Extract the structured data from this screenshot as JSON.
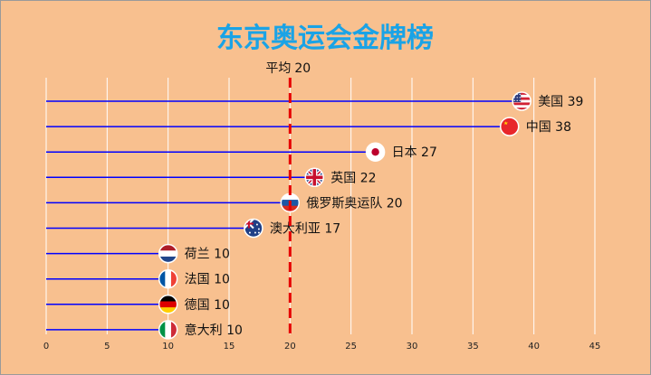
{
  "chart_data": {
    "type": "lollipop",
    "title": "东京奥运会金牌榜",
    "xlim": [
      0,
      45
    ],
    "xticks": [
      0,
      5,
      10,
      15,
      20,
      25,
      30,
      35,
      40,
      45
    ],
    "grid": "vertical",
    "average": {
      "label": "平均",
      "value": 20,
      "color": "#e60000"
    },
    "line_color": "#0000ff",
    "title_color": "#1aa3e6",
    "background": "#f8c08f",
    "rows": [
      {
        "name": "美国",
        "value": 39,
        "flag": "flag-usa",
        "label": "美国 39"
      },
      {
        "name": "中国",
        "value": 38,
        "flag": "flag-china",
        "label": "中国 38"
      },
      {
        "name": "日本",
        "value": 27,
        "flag": "flag-japan",
        "label": "日本 27"
      },
      {
        "name": "英国",
        "value": 22,
        "flag": "flag-uk",
        "label": "英国 22"
      },
      {
        "name": "俄罗斯奥运队",
        "value": 20,
        "flag": "flag-russia",
        "label": "俄罗斯奥运队 20"
      },
      {
        "name": "澳大利亚",
        "value": 17,
        "flag": "flag-australia",
        "label": "澳大利亚 17"
      },
      {
        "name": "荷兰",
        "value": 10,
        "flag": "flag-netherlands",
        "label": "荷兰 10"
      },
      {
        "name": "法国",
        "value": 10,
        "flag": "flag-france",
        "label": "法国 10"
      },
      {
        "name": "德国",
        "value": 10,
        "flag": "flag-germany",
        "label": "德国 10"
      },
      {
        "name": "意大利",
        "value": 10,
        "flag": "flag-italy",
        "label": "意大利 10"
      }
    ]
  }
}
